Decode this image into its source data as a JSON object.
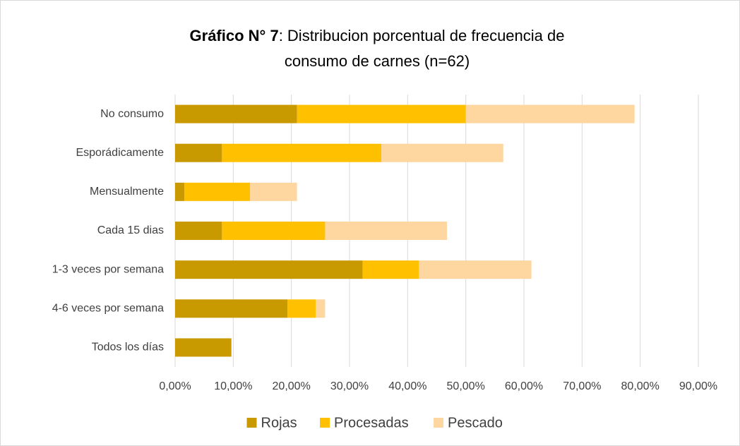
{
  "chart_data": {
    "type": "stacked-barh",
    "title_parts": [
      "Gráfico N° 7",
      ": Distribucion porcentual de frecuencia de",
      "consumo de carnes (n=62)"
    ],
    "categories": [
      "No consumo",
      "Esporádicamente",
      "Mensualmente",
      "Cada 15 dias",
      "1-3 veces por semana",
      "4-6 veces por semana",
      "Todos los días"
    ],
    "series": [
      {
        "name": "Rojas",
        "color": "#c99a00",
        "values": [
          20.97,
          8.06,
          1.61,
          8.06,
          32.26,
          19.35,
          9.68
        ]
      },
      {
        "name": "Procesadas",
        "color": "#ffc000",
        "values": [
          29.03,
          27.42,
          11.29,
          17.74,
          9.68,
          4.84,
          0
        ]
      },
      {
        "name": "Pescado",
        "color": "#fdd6a0",
        "values": [
          29.03,
          20.97,
          8.06,
          20.97,
          19.35,
          1.61,
          0
        ]
      }
    ],
    "xlim": [
      0,
      90
    ],
    "xticks": [
      {
        "value": 0,
        "label": "0,00%"
      },
      {
        "value": 10,
        "label": "10,00%"
      },
      {
        "value": 20,
        "label": "20,00%"
      },
      {
        "value": 30,
        "label": "30,00%"
      },
      {
        "value": 40,
        "label": "40,00%"
      },
      {
        "value": 50,
        "label": "50,00%"
      },
      {
        "value": 60,
        "label": "60,00%"
      },
      {
        "value": 70,
        "label": "70,00%"
      },
      {
        "value": 80,
        "label": "80,00%"
      },
      {
        "value": 90,
        "label": "90,00%"
      }
    ],
    "grid": true,
    "legend": "bottom"
  }
}
